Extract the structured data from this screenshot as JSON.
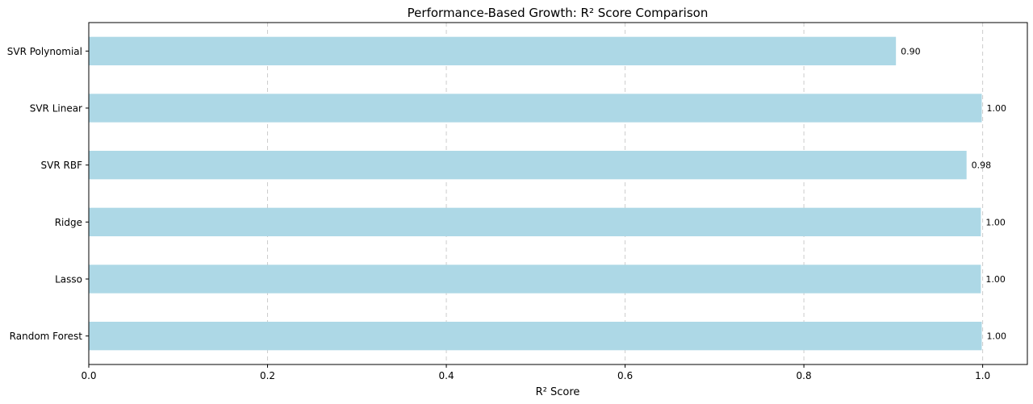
{
  "chart_data": {
    "type": "bar",
    "orientation": "horizontal",
    "title": "Performance-Based Growth: R² Score Comparison",
    "xlabel": "R² Score",
    "ylabel": "",
    "categories": [
      "SVR Polynomial",
      "SVR Linear",
      "SVR RBF",
      "Ridge",
      "Lasso",
      "Random Forest"
    ],
    "values": [
      0.903,
      0.999,
      0.982,
      0.998,
      0.998,
      0.999
    ],
    "data_labels": [
      "0.90",
      "1.00",
      "0.98",
      "1.00",
      "1.00",
      "1.00"
    ],
    "xlim": [
      0.0,
      1.05
    ],
    "xticks": [
      0.0,
      0.2,
      0.4,
      0.6,
      0.8,
      1.0
    ],
    "xtick_labels": [
      "0.0",
      "0.2",
      "0.4",
      "0.6",
      "0.8",
      "1.0"
    ],
    "grid": "x dashed",
    "bar_color": "#add8e6",
    "grid_color": "#cccccc"
  }
}
